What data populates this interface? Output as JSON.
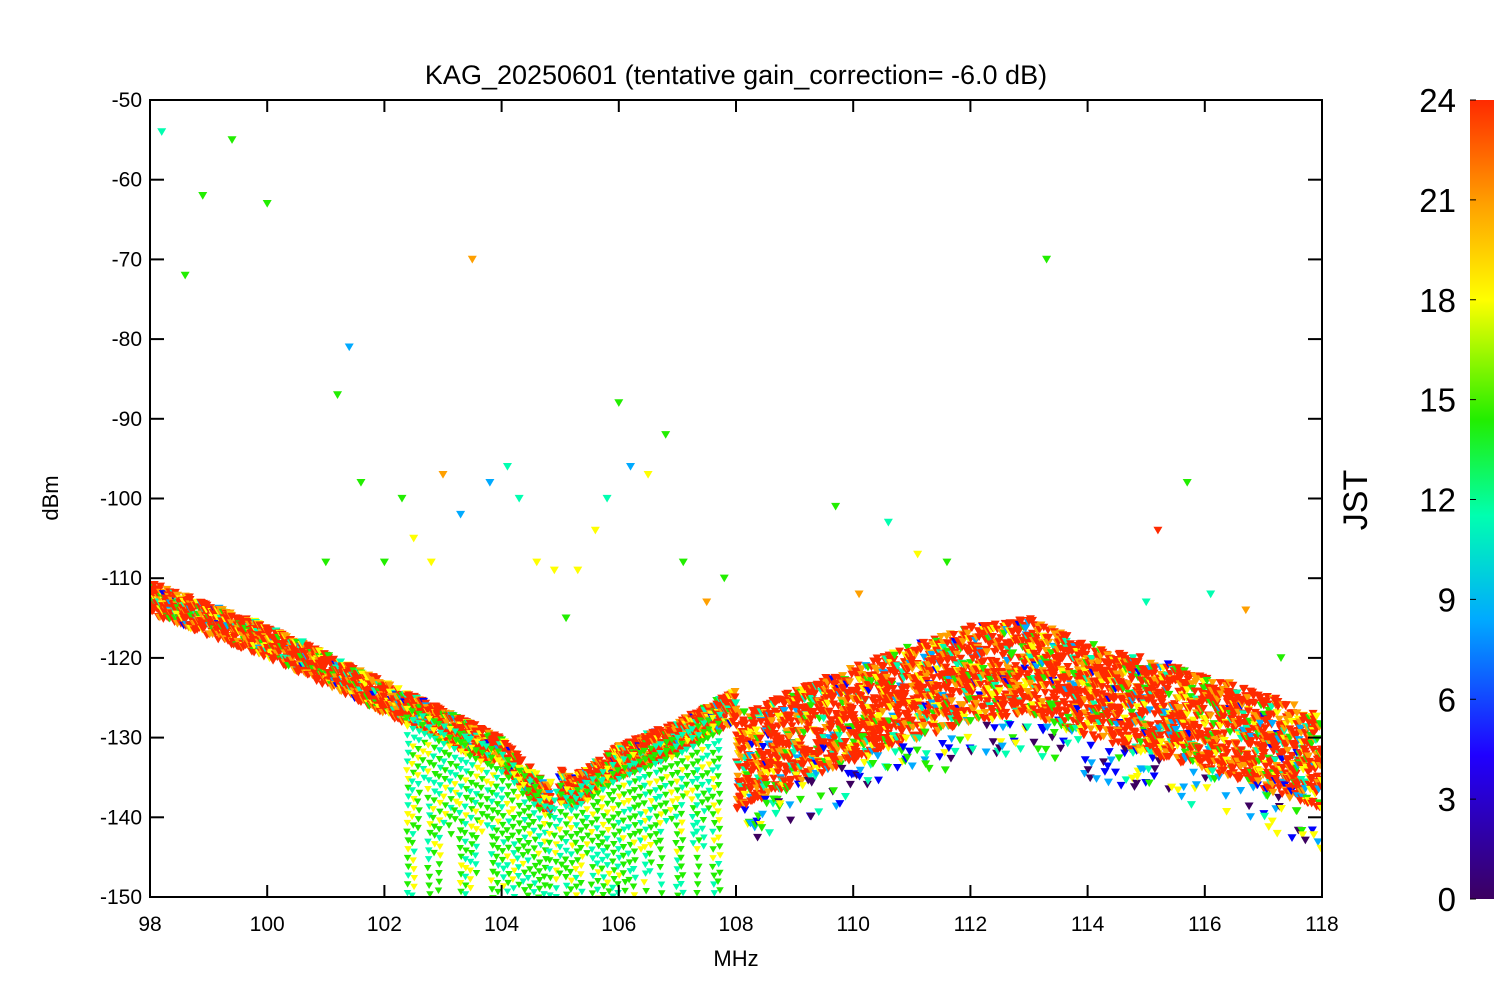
{
  "chart_data": {
    "type": "scatter",
    "title": "KAG_20250601 (tentative gain_correction= -6.0 dB)",
    "xlabel": "MHz",
    "ylabel": "dBm",
    "xlim": [
      98,
      118
    ],
    "ylim": [
      -150,
      -50
    ],
    "x_ticks": [
      "98",
      "100",
      "102",
      "104",
      "106",
      "108",
      "110",
      "112",
      "114",
      "116",
      "118"
    ],
    "y_ticks": [
      "-50",
      "-60",
      "-70",
      "-80",
      "-90",
      "-100",
      "-110",
      "-120",
      "-130",
      "-140",
      "-150"
    ],
    "marker": "downward triangle",
    "grid": false,
    "colorbar": {
      "label": "JST",
      "range": [
        0,
        24
      ],
      "ticks": [
        "24",
        "21",
        "18",
        "15",
        "12",
        "9",
        "6",
        "3",
        "0"
      ],
      "colormap": "rainbow (purple → blue → cyan → green → yellow → orange → red)",
      "colors": [
        "#3c0060",
        "#0000ff",
        "#00aaff",
        "#00ffb0",
        "#22ee00",
        "#ffff00",
        "#ffa000",
        "#ff2a00"
      ]
    },
    "noise_floor": {
      "description": "baseline noise level, dBm",
      "x": [
        98,
        100,
        102,
        104,
        104.8,
        105,
        105.2,
        106,
        107,
        108,
        108.01,
        110,
        112,
        113,
        114,
        116,
        118
      ],
      "y": [
        -112.5,
        -118,
        -125,
        -132,
        -138,
        -136,
        -137,
        -133,
        -130,
        -126,
        -133,
        -127,
        -122,
        -121,
        -124,
        -128,
        -133
      ],
      "spread_above_108": 12
    },
    "peaks": [
      {
        "x": 98.2,
        "y": -54
      },
      {
        "x": 98.6,
        "y": -72
      },
      {
        "x": 98.9,
        "y": -62
      },
      {
        "x": 99.4,
        "y": -55
      },
      {
        "x": 100.0,
        "y": -63
      },
      {
        "x": 100.6,
        "y": -118
      },
      {
        "x": 101.0,
        "y": -108
      },
      {
        "x": 101.2,
        "y": -87
      },
      {
        "x": 101.4,
        "y": -81
      },
      {
        "x": 101.6,
        "y": -98
      },
      {
        "x": 102.0,
        "y": -108
      },
      {
        "x": 102.3,
        "y": -100
      },
      {
        "x": 102.5,
        "y": -105
      },
      {
        "x": 102.8,
        "y": -108
      },
      {
        "x": 103.0,
        "y": -97
      },
      {
        "x": 103.3,
        "y": -102
      },
      {
        "x": 103.5,
        "y": -70
      },
      {
        "x": 103.8,
        "y": -98
      },
      {
        "x": 104.1,
        "y": -96
      },
      {
        "x": 104.3,
        "y": -100
      },
      {
        "x": 104.6,
        "y": -108
      },
      {
        "x": 104.9,
        "y": -109
      },
      {
        "x": 105.1,
        "y": -115
      },
      {
        "x": 105.3,
        "y": -109
      },
      {
        "x": 105.6,
        "y": -104
      },
      {
        "x": 105.8,
        "y": -100
      },
      {
        "x": 106.0,
        "y": -88
      },
      {
        "x": 106.2,
        "y": -96
      },
      {
        "x": 106.5,
        "y": -97
      },
      {
        "x": 106.8,
        "y": -92
      },
      {
        "x": 107.1,
        "y": -108
      },
      {
        "x": 107.5,
        "y": -113
      },
      {
        "x": 107.8,
        "y": -110
      },
      {
        "x": 109.7,
        "y": -101
      },
      {
        "x": 110.1,
        "y": -112
      },
      {
        "x": 110.6,
        "y": -103
      },
      {
        "x": 111.1,
        "y": -107
      },
      {
        "x": 111.6,
        "y": -108
      },
      {
        "x": 113.3,
        "y": -70
      },
      {
        "x": 115.0,
        "y": -113
      },
      {
        "x": 115.2,
        "y": -104
      },
      {
        "x": 115.7,
        "y": -98
      },
      {
        "x": 116.1,
        "y": -112
      },
      {
        "x": 116.7,
        "y": -114
      },
      {
        "x": 117.3,
        "y": -120
      }
    ]
  }
}
